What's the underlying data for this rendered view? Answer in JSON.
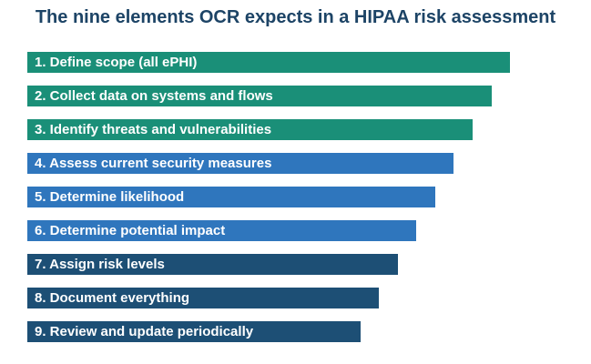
{
  "title": "The nine elements OCR expects in a HIPAA risk assessment",
  "steps": [
    {
      "label": "1. Define scope (all ePHI)",
      "color": "#1a8f78"
    },
    {
      "label": "2. Collect data on systems and flows",
      "color": "#1a8f78"
    },
    {
      "label": "3. Identify threats and vulnerabilities",
      "color": "#1a8f78"
    },
    {
      "label": "4. Assess current security measures",
      "color": "#2f76bd"
    },
    {
      "label": "5. Determine likelihood",
      "color": "#2f76bd"
    },
    {
      "label": "6. Determine potential impact",
      "color": "#2f76bd"
    },
    {
      "label": "7. Assign risk levels",
      "color": "#1d4f75"
    },
    {
      "label": "8. Document everything",
      "color": "#1d4f75"
    },
    {
      "label": "9. Review and update periodically",
      "color": "#1d4f75"
    }
  ]
}
